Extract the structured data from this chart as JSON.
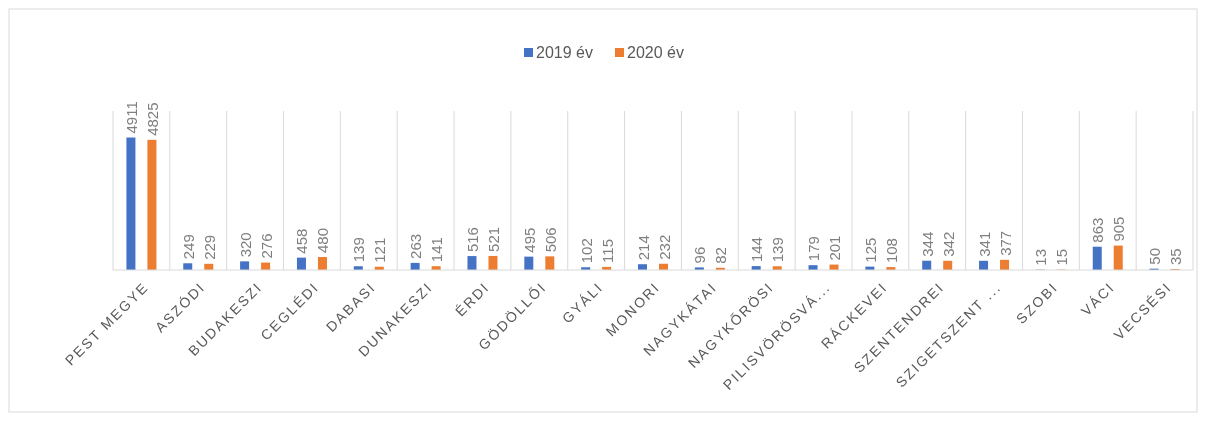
{
  "chart_data": {
    "type": "bar",
    "categories": [
      "PEST MEGYE",
      "ASZÓDI",
      "BUDAKESZI",
      "CEGLÉDI",
      "DABASI",
      "DUNAKESZI",
      "ÉRDI",
      "GÖDÖLLŐI",
      "GYÁLI",
      "MONORI",
      "NAGYKÁTAI",
      "NAGYKŐRÖSI",
      "PILISVÖRÖSVÁ...",
      "RÁCKEVEI",
      "SZENTENDREI",
      "SZIGETSZENT ...",
      "SZOBI",
      "VÁCI",
      "VECSÉSI"
    ],
    "series": [
      {
        "name": "2019 év",
        "color": "#4472c4",
        "values": [
          4911,
          249,
          320,
          458,
          139,
          263,
          516,
          495,
          102,
          214,
          96,
          144,
          179,
          125,
          344,
          341,
          13,
          863,
          50
        ]
      },
      {
        "name": "2020 év",
        "color": "#ed7d31",
        "values": [
          4825,
          229,
          276,
          480,
          121,
          141,
          521,
          506,
          115,
          232,
          82,
          139,
          201,
          108,
          342,
          377,
          15,
          905,
          35
        ]
      }
    ],
    "data_labels": true,
    "grid": "x",
    "legend": "top"
  }
}
